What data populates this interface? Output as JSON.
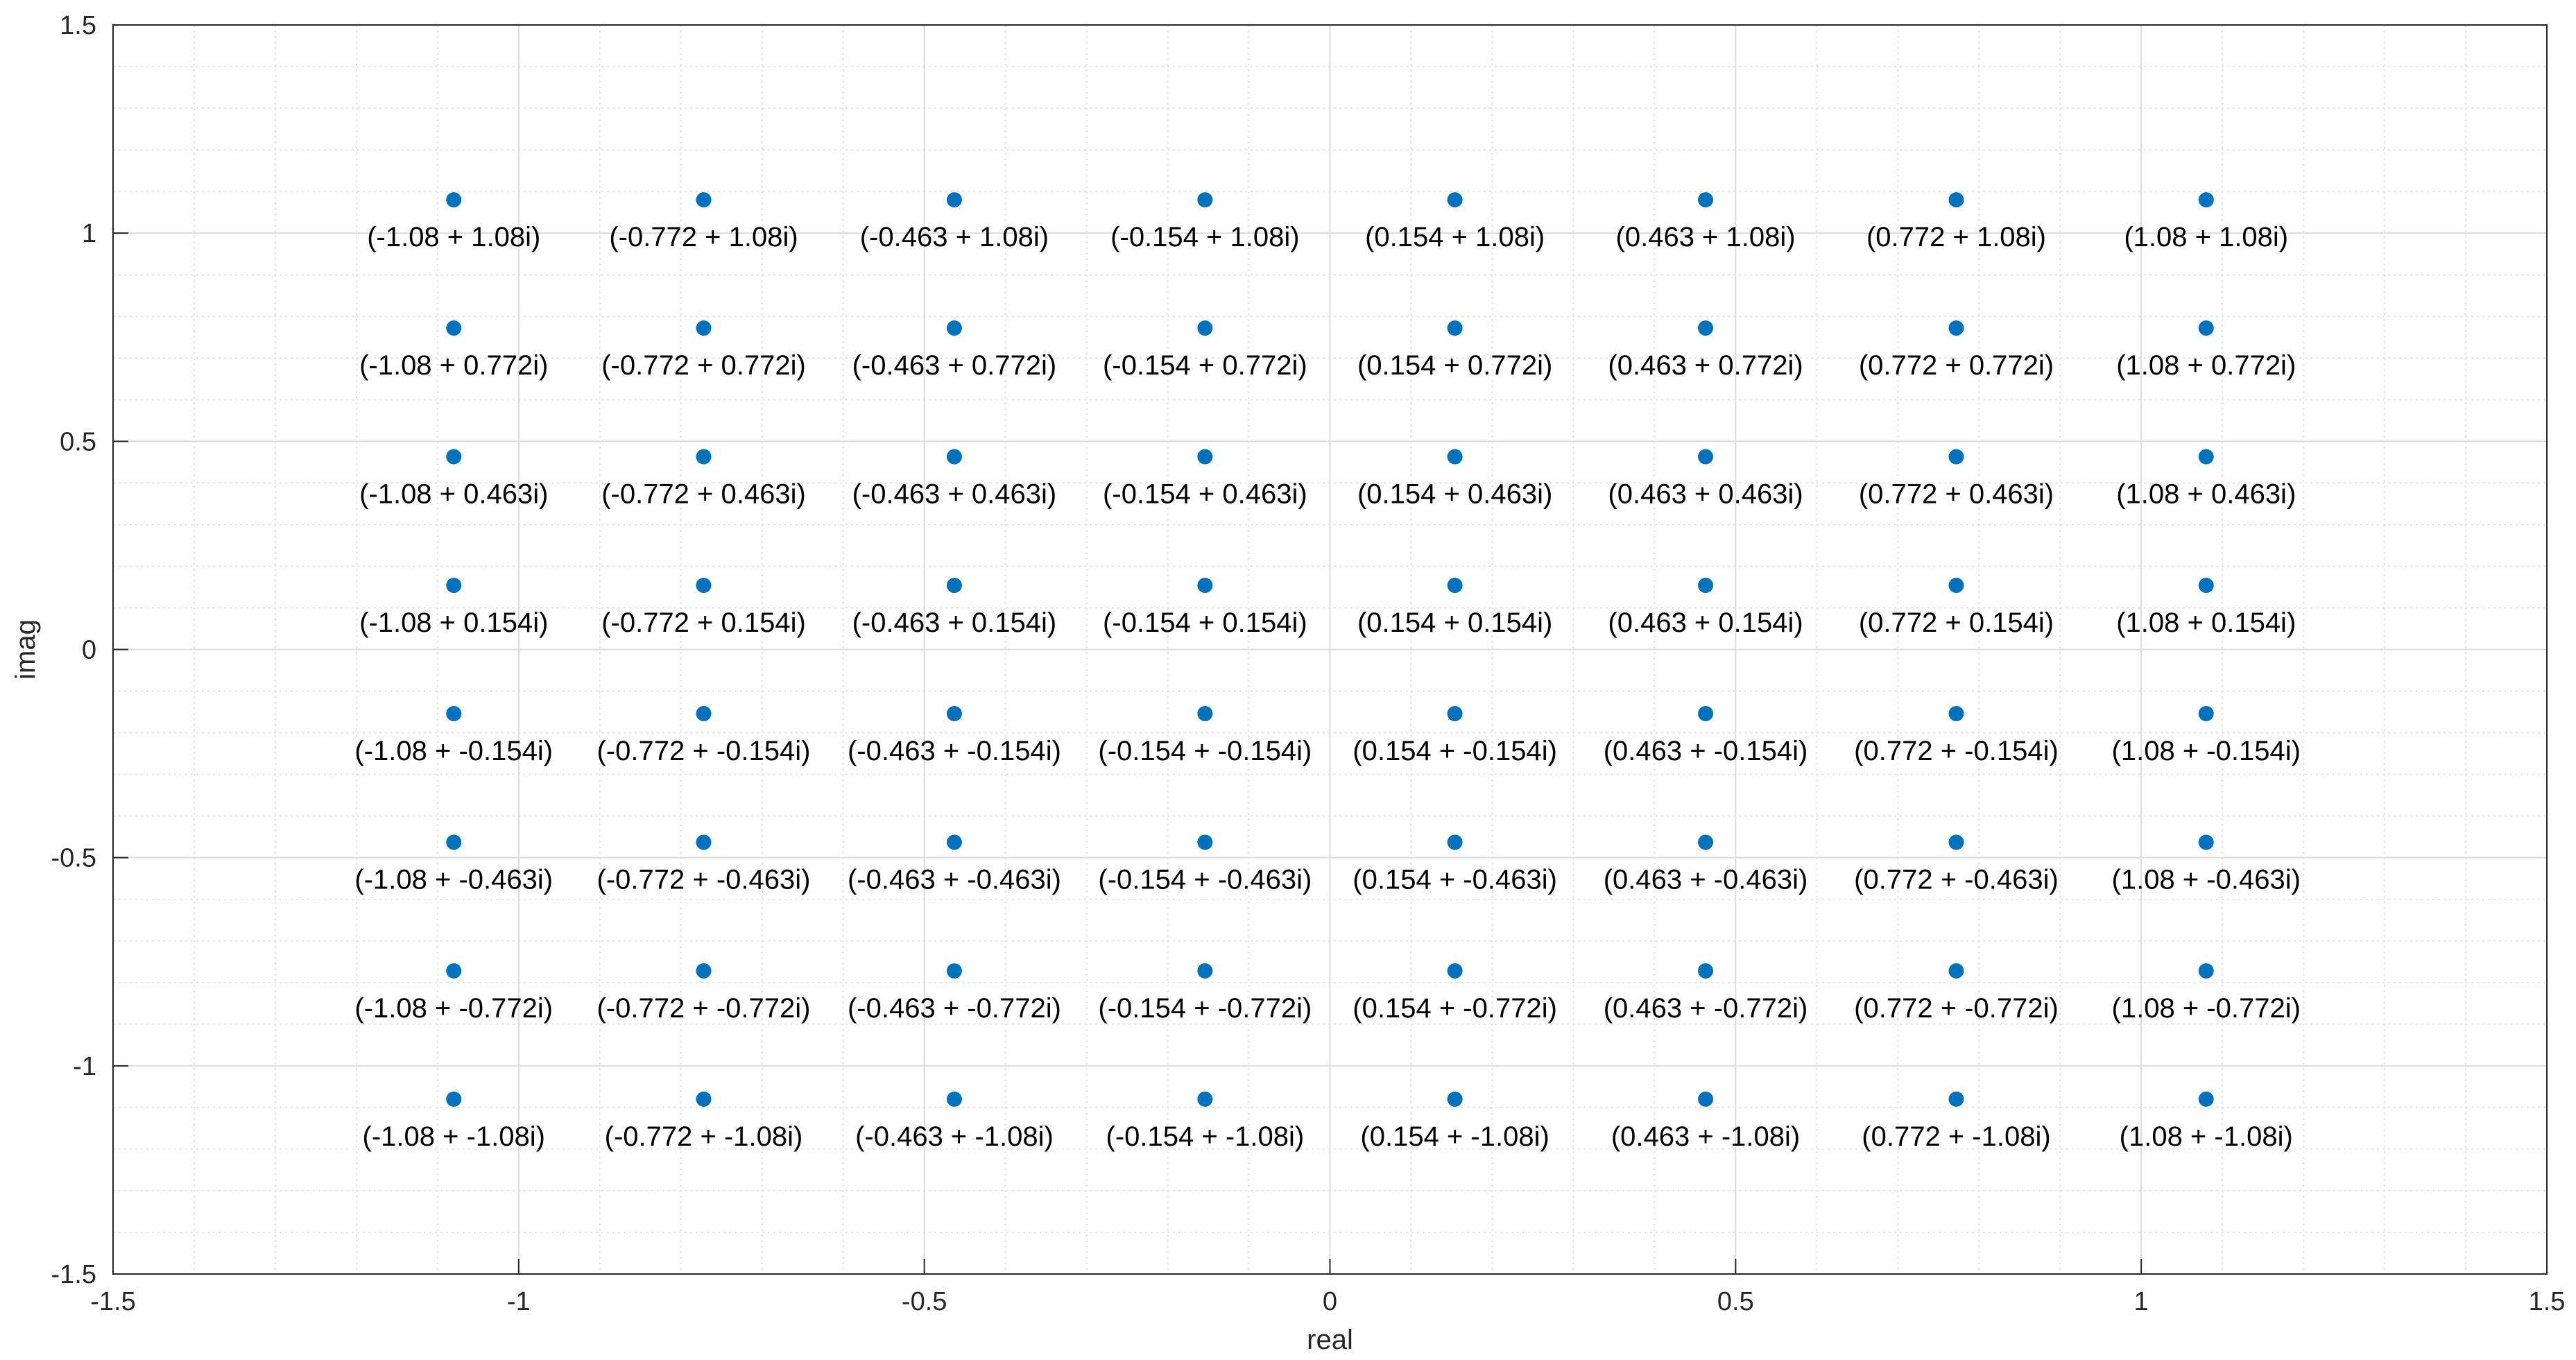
{
  "chart_data": {
    "type": "scatter",
    "title": "",
    "xlabel": "real",
    "ylabel": "imag",
    "xlim": [
      -1.5,
      1.5
    ],
    "ylim": [
      -1.5,
      1.5
    ],
    "x_ticks": [
      -1.5,
      -1,
      -0.5,
      0,
      0.5,
      1,
      1.5
    ],
    "x_tick_labels": [
      "-1.5",
      "-1",
      "-0.5",
      "0",
      "0.5",
      "1",
      "1.5"
    ],
    "y_ticks": [
      -1.5,
      -1,
      -0.5,
      0,
      0.5,
      1,
      1.5
    ],
    "y_tick_labels": [
      "-1.5",
      "-1",
      "-0.5",
      "0",
      "0.5",
      "1",
      "1.5"
    ],
    "grid": true,
    "minor_grid": true,
    "marker_color": "#0072BD",
    "series": [
      {
        "points": [
          {
            "x": -1.08,
            "y": 1.08,
            "label": "(-1.08 + 1.08i)"
          },
          {
            "x": -0.772,
            "y": 1.08,
            "label": "(-0.772 + 1.08i)"
          },
          {
            "x": -0.463,
            "y": 1.08,
            "label": "(-0.463 + 1.08i)"
          },
          {
            "x": -0.154,
            "y": 1.08,
            "label": "(-0.154 + 1.08i)"
          },
          {
            "x": 0.154,
            "y": 1.08,
            "label": "(0.154 + 1.08i)"
          },
          {
            "x": 0.463,
            "y": 1.08,
            "label": "(0.463 + 1.08i)"
          },
          {
            "x": 0.772,
            "y": 1.08,
            "label": "(0.772 + 1.08i)"
          },
          {
            "x": 1.08,
            "y": 1.08,
            "label": "(1.08 + 1.08i)"
          },
          {
            "x": -1.08,
            "y": 0.772,
            "label": "(-1.08 + 0.772i)"
          },
          {
            "x": -0.772,
            "y": 0.772,
            "label": "(-0.772 + 0.772i)"
          },
          {
            "x": -0.463,
            "y": 0.772,
            "label": "(-0.463 + 0.772i)"
          },
          {
            "x": -0.154,
            "y": 0.772,
            "label": "(-0.154 + 0.772i)"
          },
          {
            "x": 0.154,
            "y": 0.772,
            "label": "(0.154 + 0.772i)"
          },
          {
            "x": 0.463,
            "y": 0.772,
            "label": "(0.463 + 0.772i)"
          },
          {
            "x": 0.772,
            "y": 0.772,
            "label": "(0.772 + 0.772i)"
          },
          {
            "x": 1.08,
            "y": 0.772,
            "label": "(1.08 + 0.772i)"
          },
          {
            "x": -1.08,
            "y": 0.463,
            "label": "(-1.08 + 0.463i)"
          },
          {
            "x": -0.772,
            "y": 0.463,
            "label": "(-0.772 + 0.463i)"
          },
          {
            "x": -0.463,
            "y": 0.463,
            "label": "(-0.463 + 0.463i)"
          },
          {
            "x": -0.154,
            "y": 0.463,
            "label": "(-0.154 + 0.463i)"
          },
          {
            "x": 0.154,
            "y": 0.463,
            "label": "(0.154 + 0.463i)"
          },
          {
            "x": 0.463,
            "y": 0.463,
            "label": "(0.463 + 0.463i)"
          },
          {
            "x": 0.772,
            "y": 0.463,
            "label": "(0.772 + 0.463i)"
          },
          {
            "x": 1.08,
            "y": 0.463,
            "label": "(1.08 + 0.463i)"
          },
          {
            "x": -1.08,
            "y": 0.154,
            "label": "(-1.08 + 0.154i)"
          },
          {
            "x": -0.772,
            "y": 0.154,
            "label": "(-0.772 + 0.154i)"
          },
          {
            "x": -0.463,
            "y": 0.154,
            "label": "(-0.463 + 0.154i)"
          },
          {
            "x": -0.154,
            "y": 0.154,
            "label": "(-0.154 + 0.154i)"
          },
          {
            "x": 0.154,
            "y": 0.154,
            "label": "(0.154 + 0.154i)"
          },
          {
            "x": 0.463,
            "y": 0.154,
            "label": "(0.463 + 0.154i)"
          },
          {
            "x": 0.772,
            "y": 0.154,
            "label": "(0.772 + 0.154i)"
          },
          {
            "x": 1.08,
            "y": 0.154,
            "label": "(1.08 + 0.154i)"
          },
          {
            "x": -1.08,
            "y": -0.154,
            "label": "(-1.08 + -0.154i)"
          },
          {
            "x": -0.772,
            "y": -0.154,
            "label": "(-0.772 + -0.154i)"
          },
          {
            "x": -0.463,
            "y": -0.154,
            "label": "(-0.463 + -0.154i)"
          },
          {
            "x": -0.154,
            "y": -0.154,
            "label": "(-0.154 + -0.154i)"
          },
          {
            "x": 0.154,
            "y": -0.154,
            "label": "(0.154 + -0.154i)"
          },
          {
            "x": 0.463,
            "y": -0.154,
            "label": "(0.463 + -0.154i)"
          },
          {
            "x": 0.772,
            "y": -0.154,
            "label": "(0.772 + -0.154i)"
          },
          {
            "x": 1.08,
            "y": -0.154,
            "label": "(1.08 + -0.154i)"
          },
          {
            "x": -1.08,
            "y": -0.463,
            "label": "(-1.08 + -0.463i)"
          },
          {
            "x": -0.772,
            "y": -0.463,
            "label": "(-0.772 + -0.463i)"
          },
          {
            "x": -0.463,
            "y": -0.463,
            "label": "(-0.463 + -0.463i)"
          },
          {
            "x": -0.154,
            "y": -0.463,
            "label": "(-0.154 + -0.463i)"
          },
          {
            "x": 0.154,
            "y": -0.463,
            "label": "(0.154 + -0.463i)"
          },
          {
            "x": 0.463,
            "y": -0.463,
            "label": "(0.463 + -0.463i)"
          },
          {
            "x": 0.772,
            "y": -0.463,
            "label": "(0.772 + -0.463i)"
          },
          {
            "x": 1.08,
            "y": -0.463,
            "label": "(1.08 + -0.463i)"
          },
          {
            "x": -1.08,
            "y": -0.772,
            "label": "(-1.08 + -0.772i)"
          },
          {
            "x": -0.772,
            "y": -0.772,
            "label": "(-0.772 + -0.772i)"
          },
          {
            "x": -0.463,
            "y": -0.772,
            "label": "(-0.463 + -0.772i)"
          },
          {
            "x": -0.154,
            "y": -0.772,
            "label": "(-0.154 + -0.772i)"
          },
          {
            "x": 0.154,
            "y": -0.772,
            "label": "(0.154 + -0.772i)"
          },
          {
            "x": 0.463,
            "y": -0.772,
            "label": "(0.463 + -0.772i)"
          },
          {
            "x": 0.772,
            "y": -0.772,
            "label": "(0.772 + -0.772i)"
          },
          {
            "x": 1.08,
            "y": -0.772,
            "label": "(1.08 + -0.772i)"
          },
          {
            "x": -1.08,
            "y": -1.08,
            "label": "(-1.08 + -1.08i)"
          },
          {
            "x": -0.772,
            "y": -1.08,
            "label": "(-0.772 + -1.08i)"
          },
          {
            "x": -0.463,
            "y": -1.08,
            "label": "(-0.463 + -1.08i)"
          },
          {
            "x": -0.154,
            "y": -1.08,
            "label": "(-0.154 + -1.08i)"
          },
          {
            "x": 0.154,
            "y": -1.08,
            "label": "(0.154 + -1.08i)"
          },
          {
            "x": 0.463,
            "y": -1.08,
            "label": "(0.463 + -1.08i)"
          },
          {
            "x": 0.772,
            "y": -1.08,
            "label": "(0.772 + -1.08i)"
          },
          {
            "x": 1.08,
            "y": -1.08,
            "label": "(1.08 + -1.08i)"
          }
        ]
      }
    ]
  }
}
